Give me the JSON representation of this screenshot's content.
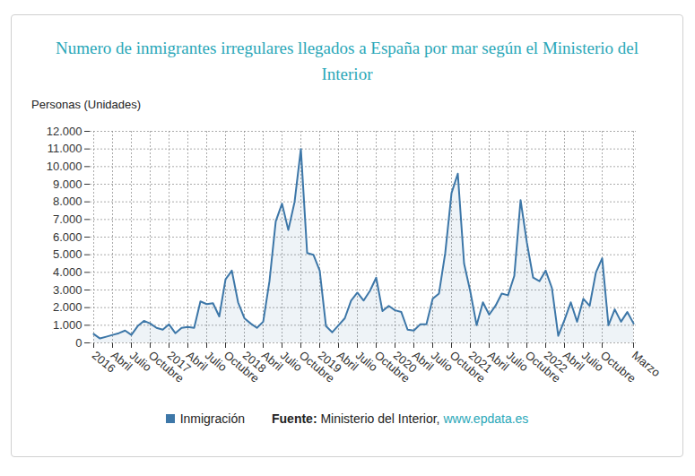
{
  "chart_data": {
    "type": "line",
    "title": "Numero de inmigrantes irregulares llegados a España por mar según el Ministerio del Interior",
    "y_label": "Personas (Unidades)",
    "source": {
      "label": "Fuente:",
      "text": "Ministerio del Interior,",
      "link": "www.epdata.es"
    },
    "categories": [
      "2016",
      null,
      null,
      "Abril",
      null,
      null,
      "Julio",
      null,
      null,
      "Octubre",
      null,
      null,
      "2017",
      null,
      null,
      "Abril",
      null,
      null,
      "Julio",
      null,
      null,
      "Octubre",
      null,
      null,
      "2018",
      null,
      null,
      "Abril",
      null,
      null,
      "Julio",
      null,
      null,
      "Octubre",
      null,
      null,
      "2019",
      null,
      null,
      "Abril",
      null,
      null,
      "Julio",
      null,
      null,
      "Octubre",
      null,
      null,
      "2020",
      null,
      null,
      "Abril",
      null,
      null,
      "Julio",
      null,
      null,
      "Octubre",
      null,
      null,
      "2021",
      null,
      null,
      "Abril",
      null,
      null,
      "Julio",
      null,
      null,
      "Octubre",
      null,
      null,
      "2022",
      null,
      null,
      "Abril",
      null,
      null,
      "Julio",
      null,
      null,
      "Octubre",
      null,
      null,
      null,
      null,
      "Marzo"
    ],
    "series": [
      {
        "name": "Inmigración",
        "color": "#3d77a8",
        "values": [
          500,
          250,
          350,
          450,
          550,
          700,
          450,
          950,
          1250,
          1100,
          850,
          750,
          1050,
          550,
          850,
          900,
          850,
          2350,
          2200,
          2250,
          1500,
          3600,
          4100,
          2300,
          1400,
          1100,
          850,
          1200,
          3500,
          6900,
          7900,
          6400,
          8000,
          11000,
          5100,
          5000,
          4100,
          950,
          600,
          1000,
          1400,
          2400,
          2850,
          2400,
          2950,
          3700,
          1800,
          2100,
          1850,
          1750,
          750,
          700,
          1050,
          1050,
          2500,
          2800,
          5100,
          8500,
          9600,
          4500,
          2900,
          1000,
          2300,
          1600,
          2100,
          2800,
          2700,
          3800,
          8100,
          5700,
          3700,
          3500,
          4100,
          3100,
          400,
          1300,
          2300,
          1200,
          2500,
          2100,
          4000,
          4800,
          1000,
          1900,
          1200,
          1750,
          1100
        ]
      }
    ],
    "ylim": [
      0,
      12000
    ],
    "yticks": [
      0,
      {
        "value": 1000,
        "label": "1.000"
      },
      {
        "value": 2000,
        "label": "2.000"
      },
      {
        "value": 3000,
        "label": "3.000"
      },
      {
        "value": 4000,
        "label": "4.000"
      },
      {
        "value": 5000,
        "label": "5.000"
      },
      {
        "value": 6000,
        "label": "6.000"
      },
      {
        "value": 7000,
        "label": "7.000"
      },
      {
        "value": 8000,
        "label": "8.000"
      },
      {
        "value": 9000,
        "label": "9.000"
      },
      {
        "value": 10000,
        "label": "10.000"
      },
      {
        "value": 11000,
        "label": "11.000"
      },
      {
        "value": 12000,
        "label": "12.000"
      }
    ],
    "grid": true
  }
}
